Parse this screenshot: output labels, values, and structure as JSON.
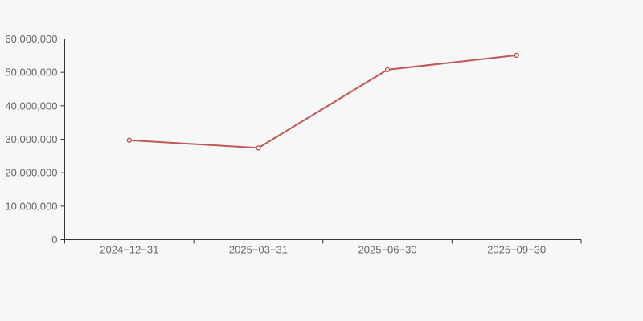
{
  "page": {
    "background_color": "#f7f7f7"
  },
  "chart_data": {
    "type": "line",
    "title": "",
    "xlabel": "",
    "ylabel": "",
    "categories": [
      "2024−12−31",
      "2025−03−31",
      "2025−06−30",
      "2025−09−30"
    ],
    "values": [
      29700000,
      27400000,
      50800000,
      55100000
    ],
    "ylim": [
      0,
      60000000
    ],
    "y_ticks": [
      {
        "value": 0,
        "label": "0"
      },
      {
        "value": 10000000,
        "label": "10,000,000"
      },
      {
        "value": 20000000,
        "label": "20,000,000"
      },
      {
        "value": 30000000,
        "label": "30,000,000"
      },
      {
        "value": 40000000,
        "label": "40,000,000"
      },
      {
        "value": 50000000,
        "label": "50,000,000"
      },
      {
        "value": 60000000,
        "label": "60,000,000"
      }
    ],
    "grid": false,
    "legend_position": "none",
    "line_color": "#c05757",
    "marker_fill": "#ffffff",
    "axis_color": "#333333",
    "label_color": "#666666"
  }
}
